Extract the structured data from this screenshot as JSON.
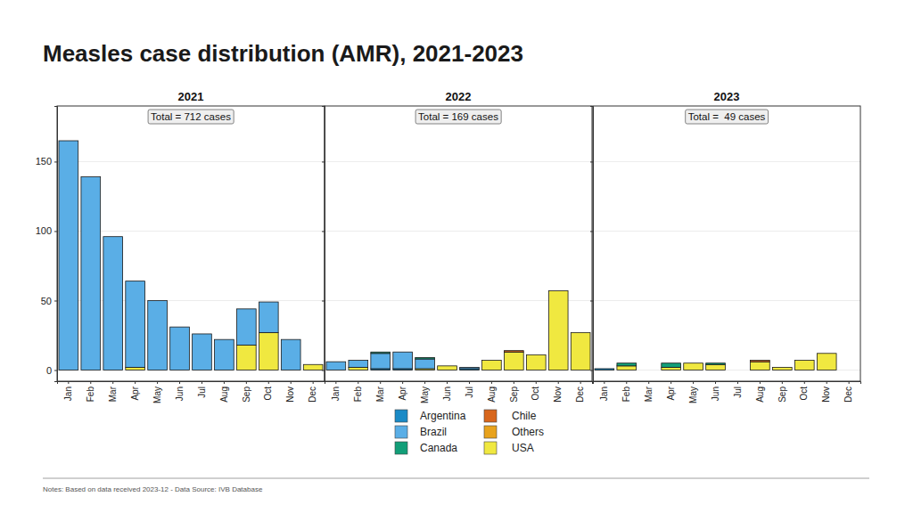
{
  "title": "Measles case distribution (AMR), 2021-2023",
  "notes": "Notes: Based on data received 2023-12 - Data Source: IVB Database",
  "chart_data": [
    {
      "type": "bar",
      "stacked": true,
      "grid": true,
      "legend": "bottom",
      "title": "2021",
      "annotation": "Total = 712 cases",
      "categories": [
        "Jan",
        "Feb",
        "Mar",
        "Apr",
        "May",
        "Jun",
        "Jul",
        "Aug",
        "Sep",
        "Oct",
        "Nov",
        "Dec"
      ],
      "ylim": [
        -8,
        190
      ],
      "yticks": [
        0,
        50,
        100,
        150
      ],
      "series": [
        {
          "name": "Argentina",
          "color": "#1a8ac6",
          "values": [
            0,
            0,
            0,
            0,
            0,
            0,
            0,
            0,
            0,
            0,
            0,
            0
          ]
        },
        {
          "name": "Brazil",
          "color": "#5aaee6",
          "values": [
            165,
            139,
            96,
            62,
            50,
            31,
            26,
            22,
            26,
            22,
            22,
            0
          ]
        },
        {
          "name": "Canada",
          "color": "#129e78",
          "values": [
            0,
            0,
            0,
            0,
            0,
            0,
            0,
            0,
            0,
            0,
            0,
            0
          ]
        },
        {
          "name": "Chile",
          "color": "#d8661c",
          "values": [
            0,
            0,
            0,
            0,
            0,
            0,
            0,
            0,
            0,
            0,
            0,
            0
          ]
        },
        {
          "name": "Others",
          "color": "#e8a21c",
          "values": [
            0,
            0,
            0,
            0,
            0,
            0,
            0,
            0,
            0,
            0,
            0,
            0
          ]
        },
        {
          "name": "USA",
          "color": "#f0e840",
          "values": [
            0,
            0,
            0,
            2,
            0,
            0,
            0,
            0,
            18,
            27,
            0,
            4
          ]
        }
      ]
    },
    {
      "type": "bar",
      "stacked": true,
      "grid": true,
      "legend": "bottom",
      "title": "2022",
      "annotation": "Total = 169 cases",
      "categories": [
        "Jan",
        "Feb",
        "Mar",
        "Apr",
        "May",
        "Jun",
        "Jul",
        "Aug",
        "Sep",
        "Oct",
        "Nov",
        "Dec"
      ],
      "ylim": [
        -8,
        190
      ],
      "yticks": [
        0,
        50,
        100,
        150
      ],
      "series": [
        {
          "name": "Argentina",
          "color": "#1a8ac6",
          "values": [
            0,
            0,
            1,
            1,
            0,
            0,
            1,
            0,
            0,
            0,
            0,
            0
          ]
        },
        {
          "name": "Brazil",
          "color": "#5aaee6",
          "values": [
            6,
            5,
            11,
            12,
            7,
            0,
            1,
            0,
            0,
            0,
            0,
            0
          ]
        },
        {
          "name": "Canada",
          "color": "#129e78",
          "values": [
            0,
            0,
            1,
            0,
            1,
            0,
            0,
            0,
            0,
            0,
            0,
            0
          ]
        },
        {
          "name": "Chile",
          "color": "#d8661c",
          "values": [
            0,
            0,
            0,
            0,
            0,
            0,
            0,
            0,
            1,
            0,
            0,
            0
          ]
        },
        {
          "name": "Others",
          "color": "#e8a21c",
          "values": [
            0,
            0,
            0,
            0,
            0,
            0,
            0,
            0,
            0,
            0,
            0,
            0
          ]
        },
        {
          "name": "USA",
          "color": "#f0e840",
          "values": [
            0,
            2,
            0,
            0,
            1,
            3,
            0,
            7,
            13,
            11,
            57,
            27
          ]
        }
      ]
    },
    {
      "type": "bar",
      "stacked": true,
      "grid": true,
      "legend": "bottom",
      "title": "2023",
      "annotation": "Total =  49 cases",
      "categories": [
        "Jan",
        "Feb",
        "Mar",
        "Apr",
        "May",
        "Jun",
        "Jul",
        "Aug",
        "Sep",
        "Oct",
        "Nov",
        "Dec"
      ],
      "ylim": [
        -8,
        190
      ],
      "yticks": [
        0,
        50,
        100,
        150
      ],
      "series": [
        {
          "name": "Argentina",
          "color": "#1a8ac6",
          "values": [
            1,
            0,
            0,
            0,
            0,
            0,
            0,
            0,
            0,
            0,
            0,
            0
          ]
        },
        {
          "name": "Brazil",
          "color": "#5aaee6",
          "values": [
            0,
            0,
            0,
            0,
            0,
            0,
            0,
            0,
            0,
            0,
            0,
            0
          ]
        },
        {
          "name": "Canada",
          "color": "#129e78",
          "values": [
            0,
            2,
            0,
            3,
            0,
            1,
            0,
            0,
            0,
            0,
            0,
            0
          ]
        },
        {
          "name": "Chile",
          "color": "#d8661c",
          "values": [
            0,
            0,
            0,
            0,
            0,
            0,
            0,
            1,
            0,
            0,
            0,
            0
          ]
        },
        {
          "name": "Others",
          "color": "#e8a21c",
          "values": [
            0,
            0,
            0,
            0,
            0,
            0,
            0,
            0,
            0,
            0,
            0,
            0
          ]
        },
        {
          "name": "USA",
          "color": "#f0e840",
          "values": [
            0,
            3,
            0,
            2,
            5,
            4,
            0,
            6,
            2,
            7,
            12,
            0
          ]
        }
      ]
    }
  ]
}
